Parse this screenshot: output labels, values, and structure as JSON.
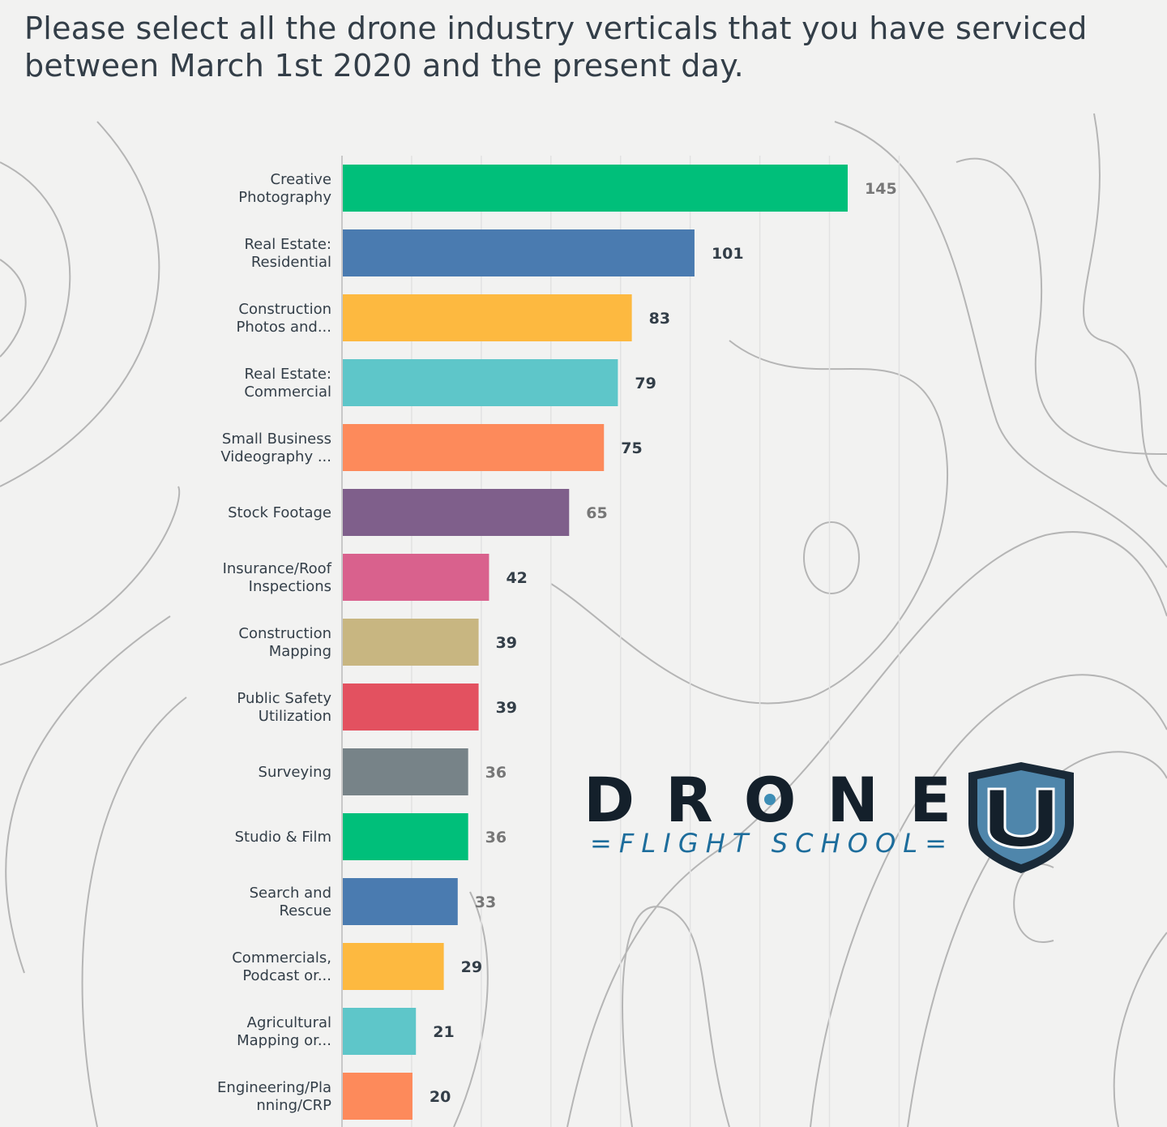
{
  "title": "Please select all the drone industry verticals that you have serviced between March 1st 2020 and the present day.",
  "chart_data": {
    "type": "bar",
    "orientation": "horizontal",
    "title": "Please select all the drone industry verticals that you have serviced between March 1st 2020 and the present day.",
    "categories": [
      [
        "Creative",
        "Photography"
      ],
      [
        "Real Estate:",
        "Residential"
      ],
      [
        "Construction",
        "Photos and..."
      ],
      [
        "Real Estate:",
        "Commercial"
      ],
      [
        "Small Business",
        "Videography ..."
      ],
      [
        "Stock Footage"
      ],
      [
        "Insurance/Roof",
        "Inspections"
      ],
      [
        "Construction",
        "Mapping"
      ],
      [
        "Public Safety",
        "Utilization"
      ],
      [
        "Surveying"
      ],
      [
        "Studio & Film"
      ],
      [
        "Search and",
        "Rescue"
      ],
      [
        "Commercials,",
        "Podcast or..."
      ],
      [
        "Agricultural",
        "Mapping or..."
      ],
      [
        "Engineering/Pla",
        "nning/CRP"
      ]
    ],
    "values": [
      145,
      101,
      83,
      79,
      75,
      65,
      42,
      39,
      39,
      36,
      36,
      33,
      29,
      21,
      20
    ],
    "colors": [
      "#00bf7a",
      "#4a7bb0",
      "#fdb940",
      "#5ec6c9",
      "#fd8a5b",
      "#7f5f8b",
      "#d9618d",
      "#c8b681",
      "#e35160",
      "#778388",
      "#00bf7a",
      "#4a7bb0",
      "#fdb940",
      "#5ec6c9",
      "#fd8a5b"
    ],
    "xlim": [
      0,
      160
    ],
    "grid_interval": 20,
    "grid": true,
    "xlabel": "",
    "ylabel": ""
  },
  "logo": {
    "text": "DRONE U",
    "subtext": "FLIGHT SCHOOL",
    "colors": {
      "dark": "#14202b",
      "blue": "#1d6d9c"
    }
  }
}
